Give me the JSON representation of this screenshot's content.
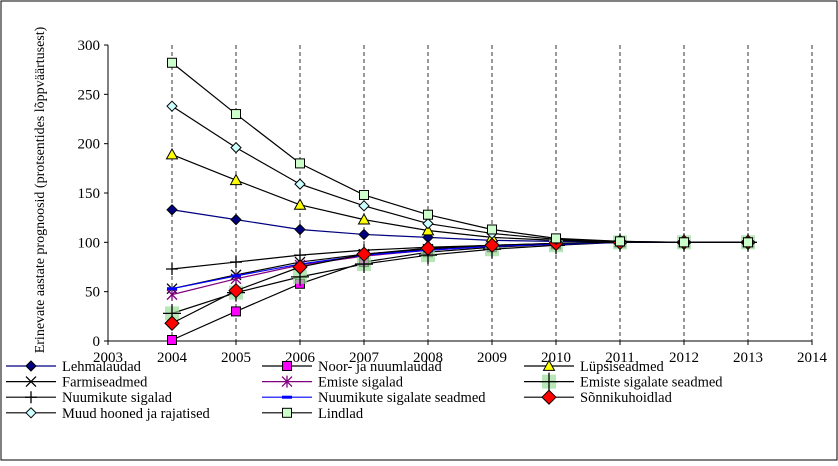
{
  "chart_data": {
    "type": "line",
    "ylabel": "Erinevate aastate prognoosid (protsentides lõppväärtusest)",
    "xlabel": "",
    "xlim": [
      2003,
      2014
    ],
    "ylim": [
      0,
      300
    ],
    "x_ticks": [
      2003,
      2004,
      2005,
      2006,
      2007,
      2008,
      2009,
      2010,
      2011,
      2012,
      2013,
      2014
    ],
    "y_ticks": [
      0,
      50,
      100,
      150,
      200,
      250,
      300
    ],
    "grid": "vertical dashed",
    "legend_position": "bottom",
    "x": [
      2004,
      2005,
      2006,
      2007,
      2008,
      2009,
      2010,
      2011,
      2012,
      2013
    ],
    "series": [
      {
        "name": "Lehmalaudad",
        "marker": "diamond",
        "color": "#000080",
        "fill": "#000080",
        "values": [
          133,
          123,
          113,
          108,
          105,
          102,
          101,
          100,
          100,
          100
        ]
      },
      {
        "name": "Noor- ja nuumlaudad",
        "marker": "square",
        "color": "#000000",
        "fill": "#ff00ff",
        "values": [
          1,
          30,
          58,
          80,
          90,
          95,
          98,
          100,
          100,
          100
        ]
      },
      {
        "name": "Lüpsiseadmed",
        "marker": "triangle",
        "color": "#000000",
        "fill": "#ffff00",
        "values": [
          189,
          163,
          138,
          123,
          112,
          105,
          102,
          100,
          100,
          100
        ]
      },
      {
        "name": "Farmiseadmed",
        "marker": "x",
        "color": "#000000",
        "fill": "none",
        "values": [
          53,
          67,
          80,
          88,
          93,
          96,
          98,
          100,
          100,
          100
        ]
      },
      {
        "name": "Emiste sigalad",
        "marker": "asterisk",
        "color": "#800080",
        "fill": "none",
        "values": [
          47,
          63,
          77,
          86,
          92,
          96,
          98,
          100,
          100,
          100
        ]
      },
      {
        "name": "Emiste sigalate seadmed",
        "marker": "plus-large",
        "color": "#000000",
        "fill": "#99dd99",
        "values": [
          28,
          49,
          65,
          78,
          87,
          93,
          97,
          100,
          100,
          100
        ]
      },
      {
        "name": "Nuumikute sigalad",
        "marker": "plus",
        "color": "#000000",
        "fill": "none",
        "values": [
          73,
          80,
          87,
          92,
          95,
          97,
          99,
          100,
          100,
          100
        ]
      },
      {
        "name": "Nuumikute sigalate seadmed",
        "marker": "dash",
        "color": "#0000ff",
        "fill": "#0000ff",
        "values": [
          53,
          66,
          78,
          87,
          92,
          96,
          98,
          100,
          100,
          100
        ]
      },
      {
        "name": "Sõnnikuhoidlad",
        "marker": "diamond-large",
        "color": "#000000",
        "fill": "#ff0000",
        "values": [
          18,
          51,
          75,
          88,
          94,
          97,
          99,
          100,
          100,
          100
        ]
      },
      {
        "name": "Muud hooned ja rajatised",
        "marker": "diamond",
        "color": "#000000",
        "fill": "#ccffff",
        "values": [
          238,
          196,
          159,
          137,
          119,
          109,
          103,
          101,
          100,
          100
        ]
      },
      {
        "name": "Lindlad",
        "marker": "square",
        "color": "#000000",
        "fill": "#ccffcc",
        "values": [
          282,
          230,
          180,
          148,
          128,
          113,
          104,
          101,
          100,
          100
        ]
      }
    ]
  }
}
